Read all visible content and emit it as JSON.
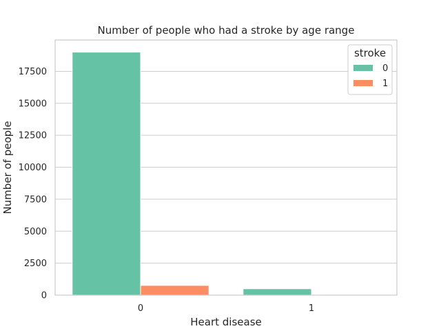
{
  "chart_data": {
    "type": "bar",
    "title": "Number of people who had a stroke by age range",
    "xlabel": "Heart disease",
    "ylabel": "Number of people",
    "categories": [
      "0",
      "1"
    ],
    "legend_title": "stroke",
    "legend_position": "top-right",
    "grid": "horizontal",
    "ylim": [
      0,
      19950
    ],
    "yticks": [
      0,
      2500,
      5000,
      7500,
      10000,
      12500,
      15000,
      17500
    ],
    "series": [
      {
        "name": "0",
        "values": [
          19000,
          500
        ],
        "color": "#66c2a5"
      },
      {
        "name": "1",
        "values": [
          760,
          50
        ],
        "color": "#fc8d62"
      }
    ]
  }
}
